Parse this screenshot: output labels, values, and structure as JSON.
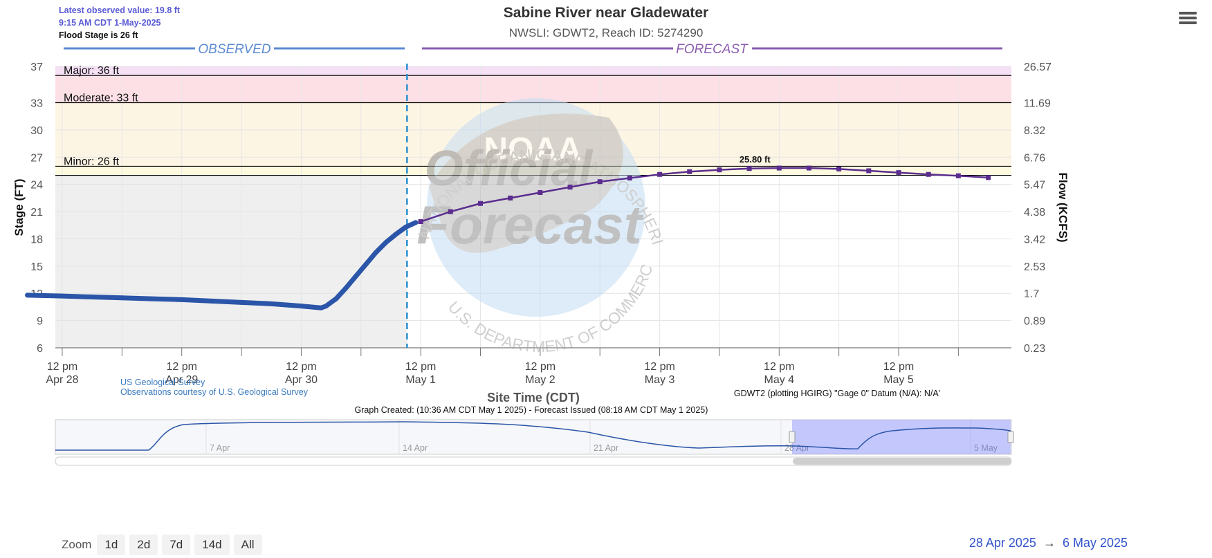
{
  "info": {
    "latest": "Latest observed value: 19.8 ft",
    "time": "9:15 AM CDT 1-May-2025",
    "flood_stage": "Flood Stage is 26 ft"
  },
  "header": {
    "title": "Sabine River near Gladewater",
    "subtitle": "NWSLI: GDWT2, Reach ID: 5274290"
  },
  "menu": {
    "icon": "hamburger-menu-icon"
  },
  "chart_data": {
    "type": "line",
    "title": "Sabine River near Gladewater",
    "subtitle": "NWSLI: GDWT2, Reach ID: 5274290",
    "xlabel": "Site Time (CDT)",
    "ylabel": "Stage (FT)",
    "ylabel_right": "Flow (KCFS)",
    "ylim": [
      6,
      37
    ],
    "xlim": [
      "2025-04-28 06:00",
      "2025-05-05 22:00"
    ],
    "grid": true,
    "section_labels": {
      "observed": "OBSERVED",
      "forecast": "FORECAST"
    },
    "now_marker": "2025-05-01 09:15",
    "yticks_left": [
      "37",
      "33",
      "30",
      "27",
      "24",
      "21",
      "18",
      "15",
      "12",
      "9",
      "6"
    ],
    "yticks_right": [
      "26.57",
      "11.69",
      "8.32",
      "6.76",
      "5.47",
      "4.38",
      "3.42",
      "2.53",
      "1.7",
      "0.89",
      "0.23"
    ],
    "xtick_labels": [
      {
        "time": "12 pm",
        "date": "Apr 28",
        "at": "2025-04-28 12:00"
      },
      {
        "time": "12 pm",
        "date": "Apr 29",
        "at": "2025-04-29 12:00"
      },
      {
        "time": "12 pm",
        "date": "Apr 30",
        "at": "2025-04-30 12:00"
      },
      {
        "time": "12 pm",
        "date": "May 1",
        "at": "2025-05-01 12:00"
      },
      {
        "time": "12 pm",
        "date": "May 2",
        "at": "2025-05-02 12:00"
      },
      {
        "time": "12 pm",
        "date": "May 3",
        "at": "2025-05-03 12:00"
      },
      {
        "time": "12 pm",
        "date": "May 4",
        "at": "2025-05-04 12:00"
      },
      {
        "time": "12 pm",
        "date": "May 5",
        "at": "2025-05-05 12:00"
      }
    ],
    "flood_categories": [
      {
        "label": "Major: 36 ft",
        "value": 36,
        "band_top": 37,
        "color": "#f6e0f6"
      },
      {
        "label": "Moderate: 33 ft",
        "value": 33,
        "band_top": 36,
        "color": "#fde0e6"
      },
      {
        "label": "Minor: 26 ft",
        "value": 26,
        "band_top": 33,
        "color": "#fdf5e4"
      }
    ],
    "action_stage": {
      "value": 25,
      "band_top": 26,
      "color": "#fdfae0"
    },
    "series": [
      {
        "name": "Observed",
        "color": "#2a55a8",
        "points": [
          [
            "2025-04-28 05:00",
            11.8
          ],
          [
            "2025-04-28 12:00",
            11.7
          ],
          [
            "2025-04-28 18:00",
            11.6
          ],
          [
            "2025-04-29 00:00",
            11.5
          ],
          [
            "2025-04-29 06:00",
            11.4
          ],
          [
            "2025-04-29 12:00",
            11.3
          ],
          [
            "2025-04-29 18:00",
            11.15
          ],
          [
            "2025-04-30 00:00",
            11.0
          ],
          [
            "2025-04-30 06:00",
            10.85
          ],
          [
            "2025-04-30 12:00",
            10.6
          ],
          [
            "2025-04-30 16:00",
            10.4
          ],
          [
            "2025-04-30 17:00",
            10.6
          ],
          [
            "2025-04-30 19:00",
            11.4
          ],
          [
            "2025-04-30 21:00",
            12.6
          ],
          [
            "2025-04-30 23:00",
            13.9
          ],
          [
            "2025-05-01 01:00",
            15.2
          ],
          [
            "2025-05-01 03:00",
            16.5
          ],
          [
            "2025-05-01 05:00",
            17.6
          ],
          [
            "2025-05-01 07:00",
            18.5
          ],
          [
            "2025-05-01 09:00",
            19.3
          ],
          [
            "2025-05-01 11:00",
            19.8
          ]
        ]
      },
      {
        "name": "Forecast",
        "color": "#5b2d8e",
        "points": [
          [
            "2025-05-01 12:00",
            19.9
          ],
          [
            "2025-05-01 18:00",
            21.0
          ],
          [
            "2025-05-02 00:00",
            21.9
          ],
          [
            "2025-05-02 06:00",
            22.5
          ],
          [
            "2025-05-02 12:00",
            23.1
          ],
          [
            "2025-05-02 18:00",
            23.7
          ],
          [
            "2025-05-03 00:00",
            24.3
          ],
          [
            "2025-05-03 06:00",
            24.7
          ],
          [
            "2025-05-03 12:00",
            25.1
          ],
          [
            "2025-05-03 18:00",
            25.4
          ],
          [
            "2025-05-04 00:00",
            25.6
          ],
          [
            "2025-05-04 06:00",
            25.75
          ],
          [
            "2025-05-04 12:00",
            25.8
          ],
          [
            "2025-05-04 18:00",
            25.8
          ],
          [
            "2025-05-05 00:00",
            25.7
          ],
          [
            "2025-05-05 06:00",
            25.5
          ],
          [
            "2025-05-05 12:00",
            25.3
          ],
          [
            "2025-05-05 18:00",
            25.1
          ],
          [
            "2025-05-06 00:00",
            24.95
          ],
          [
            "2025-05-06 06:00",
            24.75
          ]
        ]
      }
    ],
    "peak_label": {
      "text": "25.80 ft",
      "at": "2025-05-04 12:00",
      "value": 25.8
    },
    "watermark": {
      "line1": "Official",
      "line2": "Forecast",
      "seal_text": "NATIONAL OCEANIC AND ATMOSPHERIC ADMINISTRATION",
      "seal_text_bottom": "U.S. DEPARTMENT OF COMMERCE",
      "logo": "NOAA"
    },
    "credits": {
      "usgs_line1": "US Geological Survey",
      "usgs_line2": "Observations courtesy of U.S. Geological Survey",
      "datum": "GDWT2 (plotting HGIRG) \"Gage 0\" Datum (N/A): N/A'",
      "created": "Graph Created: (10:36 AM CDT May 1 2025) - Forecast Issued (08:18 AM CDT May 1 2025)"
    },
    "navigator": {
      "labels": [
        "7 Apr",
        "14 Apr",
        "21 Apr",
        "28 Apr",
        "5 May"
      ],
      "selected_from": "2025-04-28",
      "selected_to": "2025-05-06"
    }
  },
  "zoom": {
    "label": "Zoom",
    "buttons": [
      "1d",
      "2d",
      "7d",
      "14d",
      "All"
    ]
  },
  "range": {
    "from": "28 Apr 2025",
    "arrow": "→",
    "to": "6 May 2025"
  }
}
